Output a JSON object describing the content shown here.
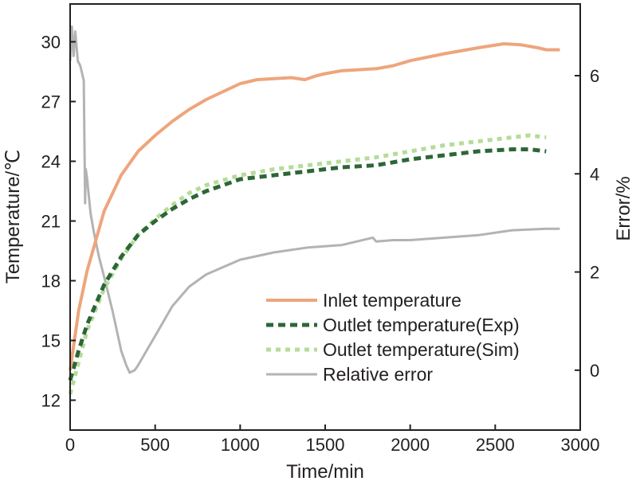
{
  "chart_data": {
    "type": "line",
    "title": "",
    "xlabel": "Time/min",
    "ylabel": "Temperature/℃",
    "y2label": "Error/%",
    "xlim": [
      0,
      3000
    ],
    "ylim": [
      10.5,
      31.9
    ],
    "y2lim": [
      -1.22,
      7.46
    ],
    "xticks": [
      0,
      500,
      1000,
      1500,
      2000,
      2500,
      3000
    ],
    "yticks": [
      12,
      15,
      18,
      21,
      24,
      27,
      30
    ],
    "y2ticks": [
      0,
      2,
      4,
      6
    ],
    "grid": false,
    "legend_position": "bottom-right",
    "series": [
      {
        "name": "Inlet temperature",
        "axis": "left",
        "color": "#eea57c",
        "style": "solid",
        "x": [
          0,
          50,
          100,
          200,
          300,
          400,
          500,
          600,
          700,
          800,
          900,
          1000,
          1100,
          1200,
          1300,
          1380,
          1450,
          1500,
          1600,
          1700,
          1800,
          1900,
          2000,
          2200,
          2400,
          2550,
          2650,
          2750,
          2800,
          2880
        ],
        "y": [
          13.5,
          16.5,
          18.5,
          21.5,
          23.3,
          24.5,
          25.3,
          26.0,
          26.6,
          27.1,
          27.5,
          27.9,
          28.1,
          28.15,
          28.2,
          28.1,
          28.3,
          28.4,
          28.55,
          28.6,
          28.65,
          28.8,
          29.05,
          29.4,
          29.7,
          29.9,
          29.85,
          29.7,
          29.6,
          29.6
        ]
      },
      {
        "name": "Outlet temperature(Exp)",
        "axis": "left",
        "color": "#2d6637",
        "style": "dashed",
        "x": [
          0,
          50,
          100,
          200,
          300,
          400,
          500,
          600,
          700,
          800,
          900,
          1000,
          1200,
          1400,
          1600,
          1800,
          2000,
          2200,
          2400,
          2600,
          2700,
          2800
        ],
        "y": [
          13.0,
          14.5,
          15.8,
          17.8,
          19.2,
          20.3,
          21.0,
          21.6,
          22.1,
          22.5,
          22.8,
          23.1,
          23.3,
          23.5,
          23.7,
          23.8,
          24.1,
          24.3,
          24.5,
          24.6,
          24.6,
          24.5
        ]
      },
      {
        "name": "Outlet temperature(Sim)",
        "axis": "left",
        "color": "#b5dc98",
        "style": "dotted",
        "x": [
          0,
          100,
          200,
          300,
          400,
          500,
          600,
          700,
          800,
          1000,
          1200,
          1400,
          1600,
          1800,
          2000,
          2200,
          2400,
          2600,
          2700,
          2800
        ],
        "y": [
          12.3,
          15.5,
          17.6,
          19.1,
          20.3,
          21.1,
          21.8,
          22.4,
          22.8,
          23.3,
          23.6,
          23.8,
          24.0,
          24.2,
          24.5,
          24.8,
          25.0,
          25.2,
          25.3,
          25.2
        ]
      },
      {
        "name": "Relative error",
        "axis": "right",
        "color": "#b3b3b3",
        "style": "solid",
        "x": [
          0,
          10,
          20,
          30,
          45,
          60,
          80,
          88,
          92,
          100,
          120,
          140,
          170,
          200,
          250,
          300,
          330,
          350,
          380,
          400,
          450,
          500,
          600,
          700,
          800,
          900,
          1000,
          1200,
          1400,
          1600,
          1780,
          1800,
          1900,
          2000,
          2200,
          2400,
          2600,
          2800,
          2880
        ],
        "y": [
          6.3,
          7.0,
          6.4,
          6.9,
          6.3,
          6.2,
          5.9,
          3.4,
          4.1,
          3.9,
          3.2,
          2.8,
          2.3,
          1.9,
          1.2,
          0.4,
          0.1,
          -0.05,
          0.0,
          0.1,
          0.4,
          0.7,
          1.3,
          1.7,
          1.95,
          2.1,
          2.25,
          2.4,
          2.5,
          2.55,
          2.7,
          2.62,
          2.65,
          2.65,
          2.7,
          2.75,
          2.85,
          2.88,
          2.88
        ]
      }
    ]
  }
}
